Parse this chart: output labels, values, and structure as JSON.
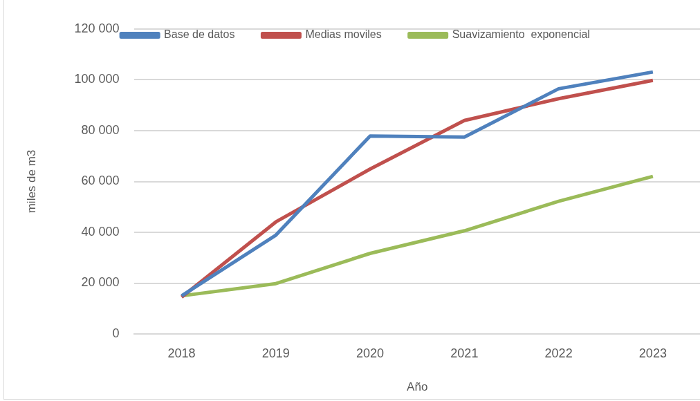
{
  "chart_data": {
    "type": "line",
    "xlabel": "Año",
    "ylabel": "miles de m3",
    "categories": [
      "2018",
      "2019",
      "2020",
      "2021",
      "2022",
      "2023"
    ],
    "series": [
      {
        "name": "Base de datos",
        "color": "#4f81bd",
        "values": [
          15000,
          38900,
          77900,
          77500,
          96500,
          103100
        ]
      },
      {
        "name": "Medias moviles",
        "color": "#c0504d",
        "values": [
          14500,
          44100,
          64900,
          84000,
          92600,
          99800
        ]
      },
      {
        "name": "Suavizamiento  exponencial",
        "color": "#9bbb59",
        "values": [
          15000,
          19800,
          31700,
          40600,
          52200,
          62000
        ]
      }
    ],
    "ylim": [
      0,
      120000
    ],
    "yticks": [
      {
        "value": 0,
        "label": "0"
      },
      {
        "value": 20000,
        "label": "20 000"
      },
      {
        "value": 40000,
        "label": "40 000"
      },
      {
        "value": 60000,
        "label": "60 000"
      },
      {
        "value": 80000,
        "label": "80 000"
      },
      {
        "value": 100000,
        "label": "100 000"
      },
      {
        "value": 120000,
        "label": "120 000"
      }
    ],
    "grid": "y",
    "legend": "top"
  }
}
